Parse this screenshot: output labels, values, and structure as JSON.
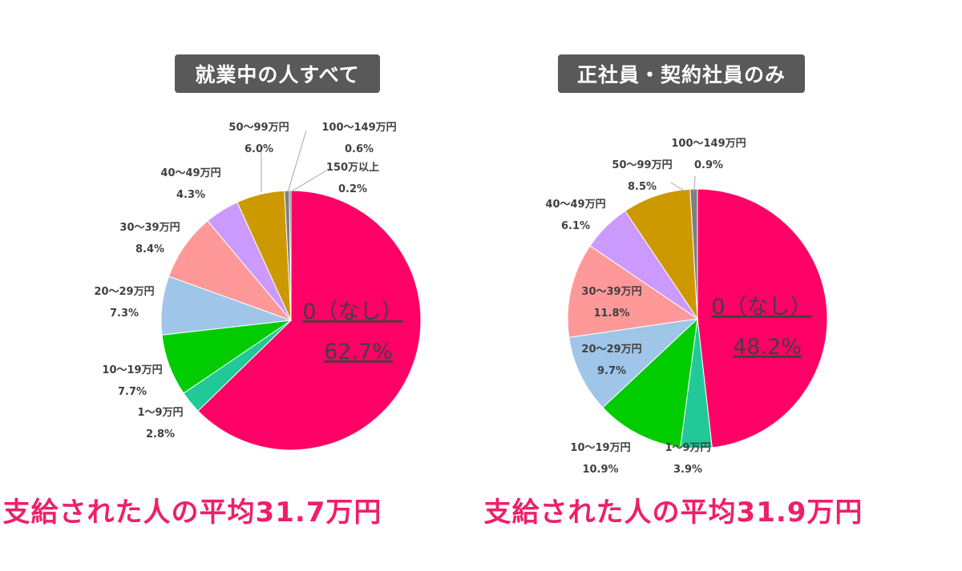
{
  "chart_data": [
    {
      "type": "pie",
      "title": "就業中の人すべて",
      "colors": [
        "#ff0066",
        "#20c997",
        "#00cc00",
        "#9fc5e8",
        "#ff9999",
        "#cc99ff",
        "#cc9900",
        "#7f7f7f",
        "#595959"
      ],
      "slices": [
        {
          "name": "0（なし）",
          "value": 62.7,
          "label": "62.7%"
        },
        {
          "name": "1～9万円",
          "value": 2.8,
          "label": "2.8%"
        },
        {
          "name": "10～19万円",
          "value": 7.7,
          "label": "7.7%"
        },
        {
          "name": "20～29万円",
          "value": 7.3,
          "label": "7.3%"
        },
        {
          "name": "30～39万円",
          "value": 8.4,
          "label": "8.4%"
        },
        {
          "name": "40～49万円",
          "value": 4.3,
          "label": "4.3%"
        },
        {
          "name": "50～99万円",
          "value": 6.0,
          "label": "6.0%"
        },
        {
          "name": "100～149万円",
          "value": 0.6,
          "label": "0.6%"
        },
        {
          "name": "150万以上",
          "value": 0.2,
          "label": "0.2%"
        }
      ],
      "footer": "支給された人の平均31.7万円"
    },
    {
      "type": "pie",
      "title": "正社員・契約社員のみ",
      "colors": [
        "#ff0066",
        "#20c997",
        "#00cc00",
        "#9fc5e8",
        "#ff9999",
        "#cc99ff",
        "#cc9900",
        "#7f7f7f"
      ],
      "slices": [
        {
          "name": "0（なし）",
          "value": 48.2,
          "label": "48.2%"
        },
        {
          "name": "1～9万円",
          "value": 3.9,
          "label": "3.9%"
        },
        {
          "name": "10～19万円",
          "value": 10.9,
          "label": "10.9%"
        },
        {
          "name": "20～29万円",
          "value": 9.7,
          "label": "9.7%"
        },
        {
          "name": "30～39万円",
          "value": 11.8,
          "label": "11.8%"
        },
        {
          "name": "40～49万円",
          "value": 6.1,
          "label": "6.1%"
        },
        {
          "name": "50～99万円",
          "value": 8.5,
          "label": "8.5%"
        },
        {
          "name": "100～149万円",
          "value": 0.9,
          "label": "0.9%"
        }
      ],
      "footer": "支給された人の平均31.9万円"
    }
  ]
}
